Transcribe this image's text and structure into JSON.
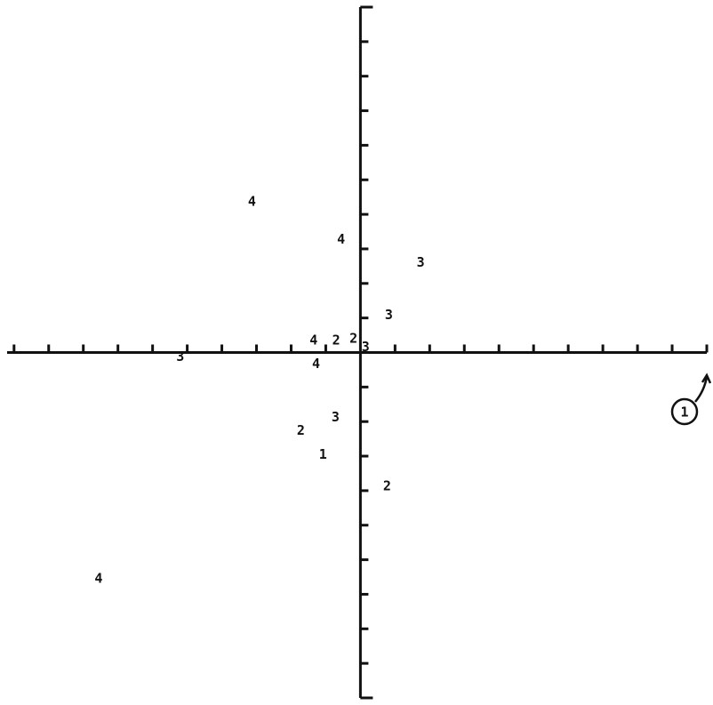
{
  "chart_data": {
    "type": "scatter",
    "series": [
      {
        "color": "#111111",
        "x": [
          -3.13,
          -0.56,
          1.74,
          0.82,
          -0.72,
          -1.72,
          -1.08,
          0.77,
          -7.56,
          -1.28,
          -5.2,
          -1.35,
          -0.7,
          -0.2,
          0.15
        ],
        "values": [
          4.36,
          3.27,
          2.6,
          1.08,
          -1.88,
          -2.27,
          -2.96,
          -3.87,
          -6.55,
          -0.34,
          -0.13,
          0.35,
          0.35,
          0.4,
          0.15
        ],
        "labels": [
          "4",
          "4",
          "3",
          "3",
          "3",
          "2",
          "1",
          "2",
          "4",
          "4",
          "3",
          "4",
          "2",
          "2",
          "3"
        ]
      }
    ],
    "xlim": [
      -10.2,
      10
    ],
    "ylim": [
      -10,
      10
    ],
    "xticks": [
      -10,
      -9,
      -8,
      -7,
      -6,
      -5,
      -4,
      -3,
      -2,
      -1,
      1,
      2,
      3,
      4,
      5,
      6,
      7,
      8,
      9,
      10
    ],
    "yticks": [
      -10,
      -9,
      -8,
      -7,
      -6,
      -5,
      -4,
      -3,
      -2,
      -1,
      1,
      2,
      3,
      4,
      5,
      6,
      7,
      8,
      9,
      10
    ],
    "annotation": "1"
  }
}
